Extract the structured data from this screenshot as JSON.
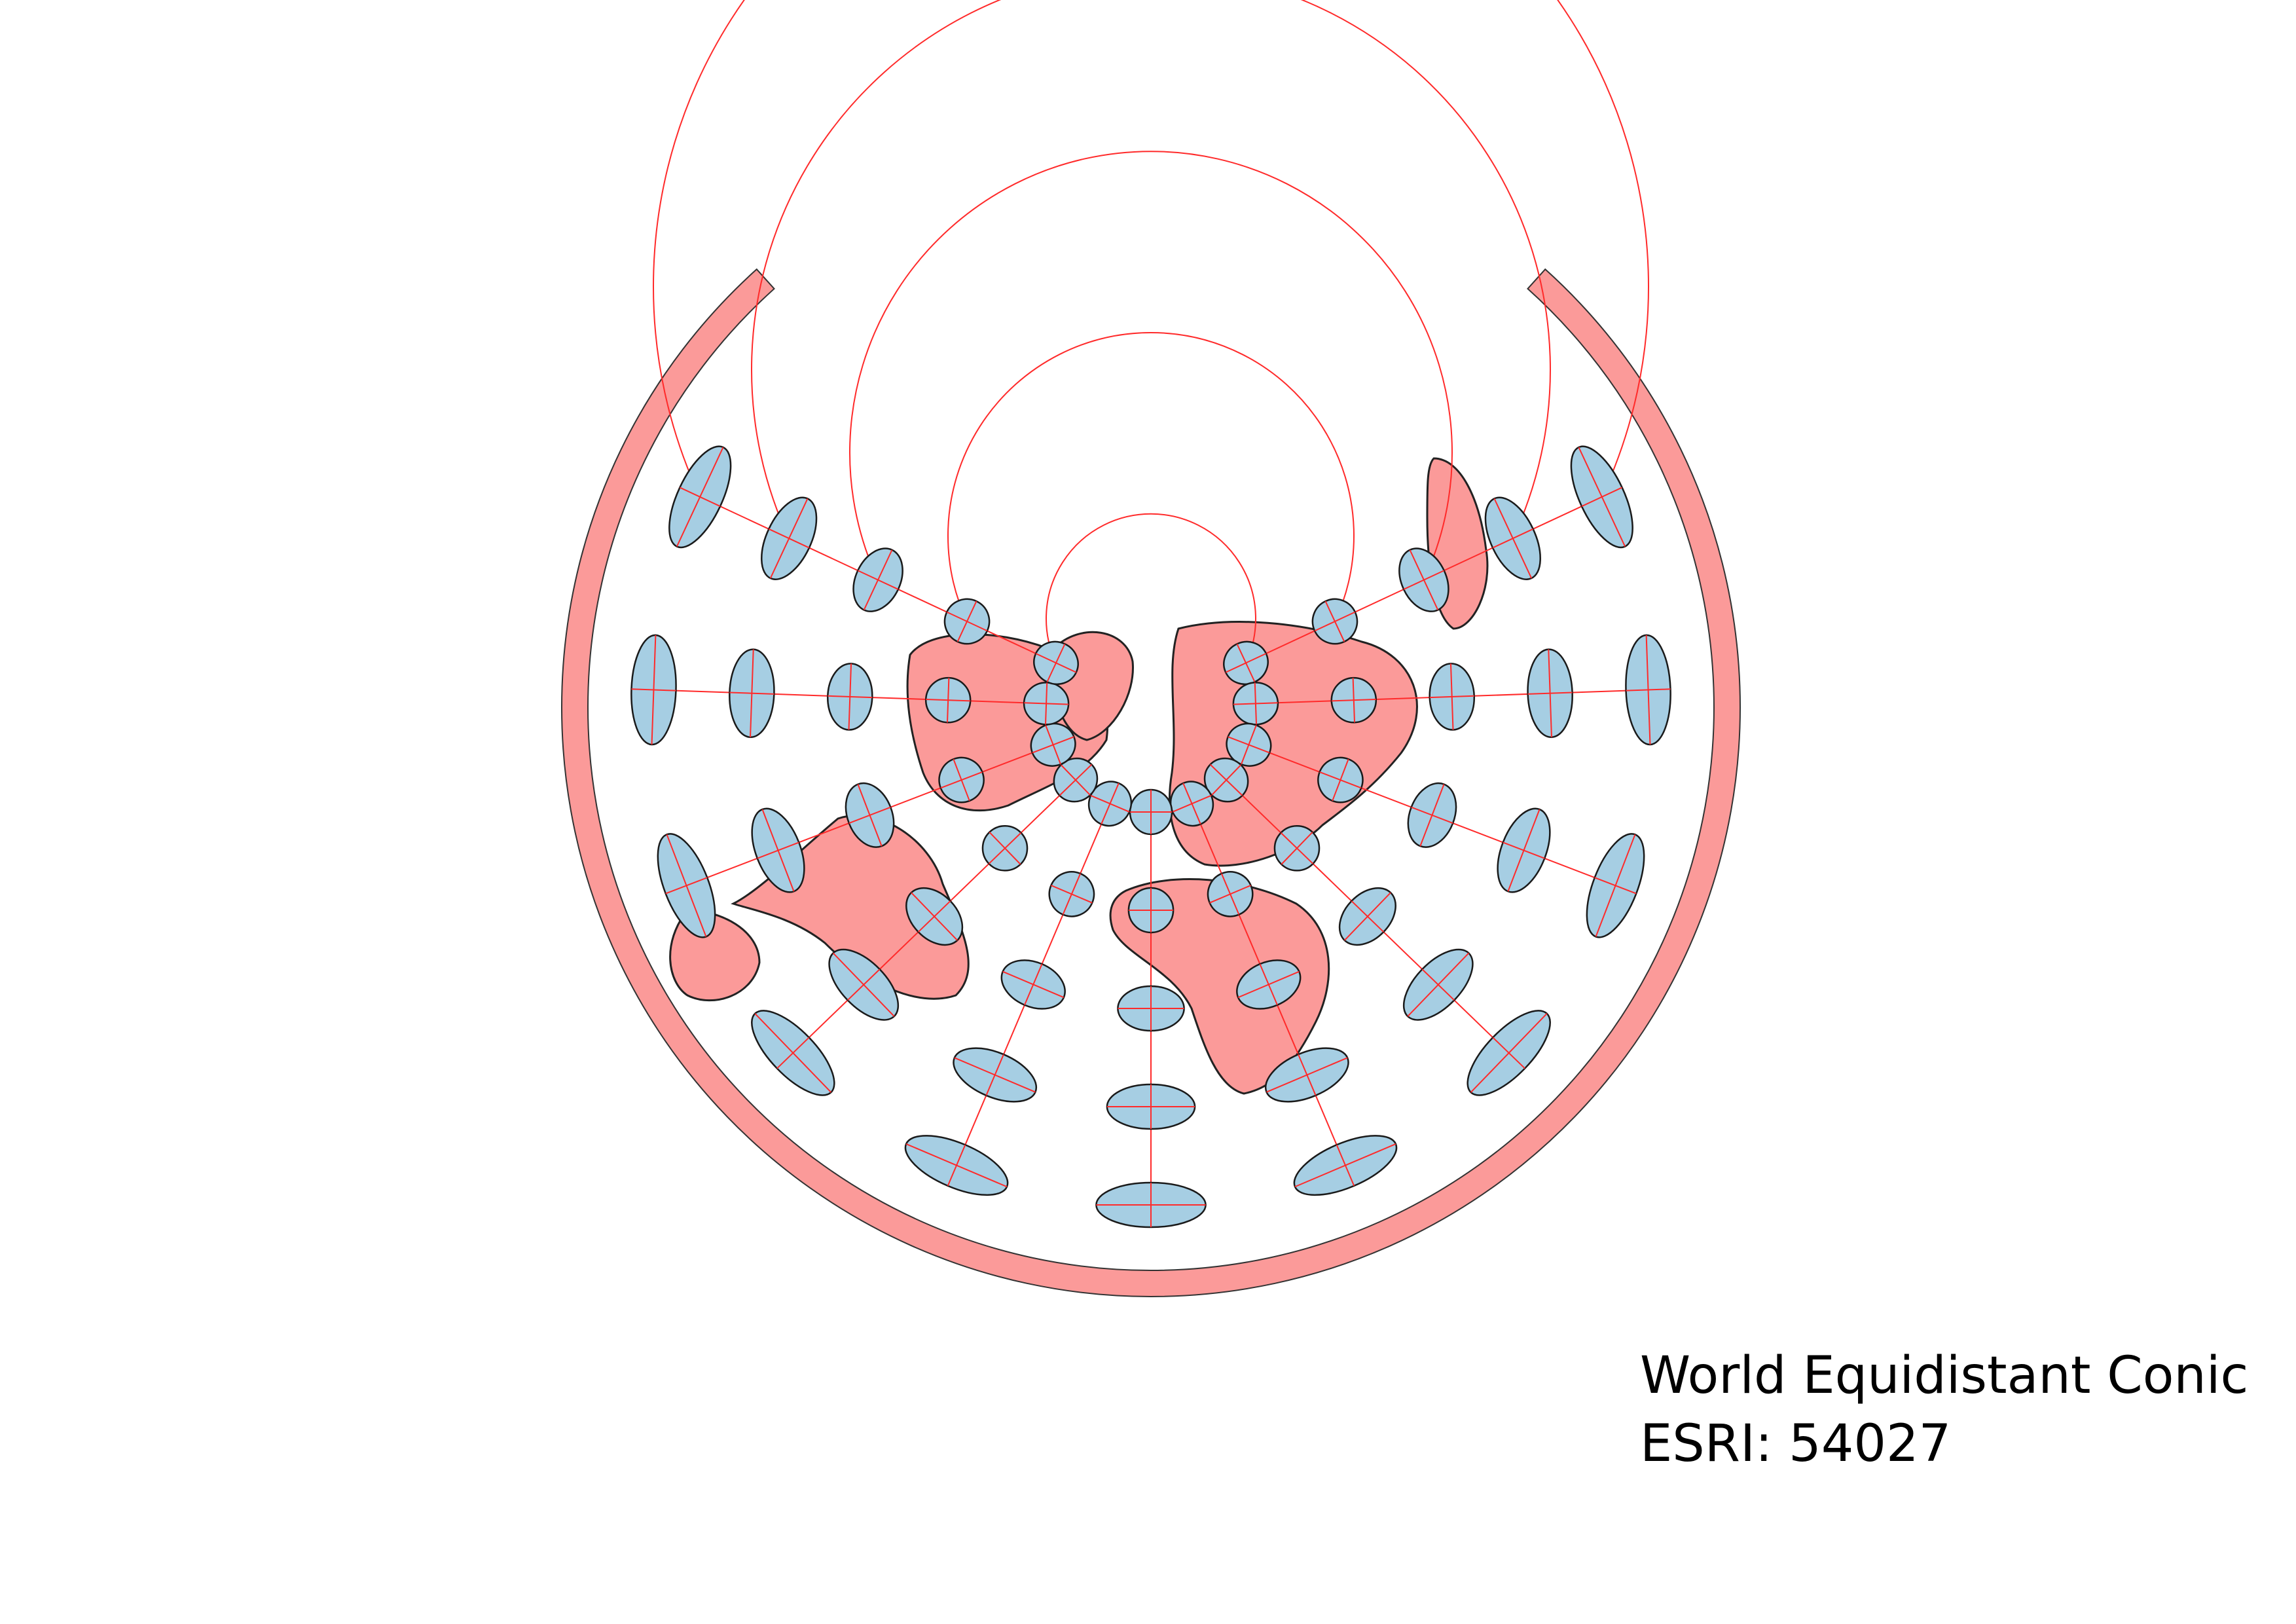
{
  "caption": {
    "projection_name": "World Equidistant Conic",
    "code": "ESRI: 54027"
  },
  "style": {
    "land_fill": "#fb9a99",
    "land_stroke": "#222222",
    "ellipse_fill": "#a6cee3",
    "ellipse_stroke": "#1a1a1a",
    "graticule_color": "#ff2a2a",
    "background": "#ffffff"
  },
  "map": {
    "projection": "Equidistant Conic, fan-shaped world extent with wrap gap at top",
    "graticule_latitudes_deg": [
      60,
      30,
      0,
      -30,
      -60
    ],
    "graticule_longitudes_deg": [
      -150,
      -120,
      -90,
      -60,
      -30,
      0,
      30,
      60,
      90,
      120,
      150
    ],
    "indicatrix_grid": "Tissot-style distortion ellipses at graticule intersections, elongating toward the outer (southern) rings"
  }
}
